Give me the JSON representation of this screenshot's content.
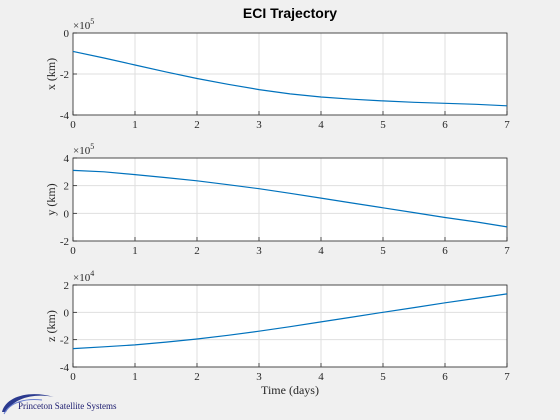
{
  "chart_data": {
    "title": "ECI Trajectory",
    "xlabel": "Time (days)",
    "xlim": [
      0,
      7
    ],
    "xticks": [
      0,
      1,
      2,
      3,
      4,
      5,
      6,
      7
    ],
    "type": "line",
    "grid": true,
    "line_color": "#0072bd",
    "background": "#f0f0f0",
    "axes_background": "#ffffff",
    "subplots": [
      {
        "ylabel": "x (km)",
        "multiplier": "×10",
        "exponent": "5",
        "ylim": [
          -4,
          0
        ],
        "yticks": [
          -4,
          -2,
          0
        ],
        "x": [
          0,
          0.5,
          1,
          1.5,
          2,
          2.5,
          3,
          3.5,
          4,
          4.5,
          5,
          5.5,
          6,
          6.5,
          7
        ],
        "y": [
          -0.9,
          -1.22,
          -1.56,
          -1.9,
          -2.22,
          -2.5,
          -2.76,
          -2.97,
          -3.12,
          -3.23,
          -3.31,
          -3.38,
          -3.43,
          -3.48,
          -3.55
        ]
      },
      {
        "ylabel": "y (km)",
        "multiplier": "×10",
        "exponent": "5",
        "ylim": [
          -2,
          4
        ],
        "yticks": [
          -2,
          0,
          2,
          4
        ],
        "x": [
          0,
          0.5,
          1,
          1.5,
          2,
          2.5,
          3,
          3.5,
          4,
          4.5,
          5,
          5.5,
          6,
          6.5,
          7
        ],
        "y": [
          3.1,
          3.0,
          2.8,
          2.58,
          2.35,
          2.07,
          1.78,
          1.45,
          1.1,
          0.75,
          0.4,
          0.05,
          -0.3,
          -0.62,
          -0.98
        ]
      },
      {
        "ylabel": "z (km)",
        "multiplier": "×10",
        "exponent": "4",
        "ylim": [
          -4,
          2
        ],
        "yticks": [
          -4,
          -2,
          0,
          2
        ],
        "x": [
          0,
          0.5,
          1,
          1.5,
          2,
          2.5,
          3,
          3.5,
          4,
          4.5,
          5,
          5.5,
          6,
          6.5,
          7
        ],
        "y": [
          -2.65,
          -2.52,
          -2.38,
          -2.18,
          -1.95,
          -1.68,
          -1.38,
          -1.05,
          -0.7,
          -0.35,
          0.0,
          0.35,
          0.7,
          1.02,
          1.35
        ]
      }
    ]
  },
  "footer": {
    "logo_text": "Princeton Satellite Systems"
  }
}
